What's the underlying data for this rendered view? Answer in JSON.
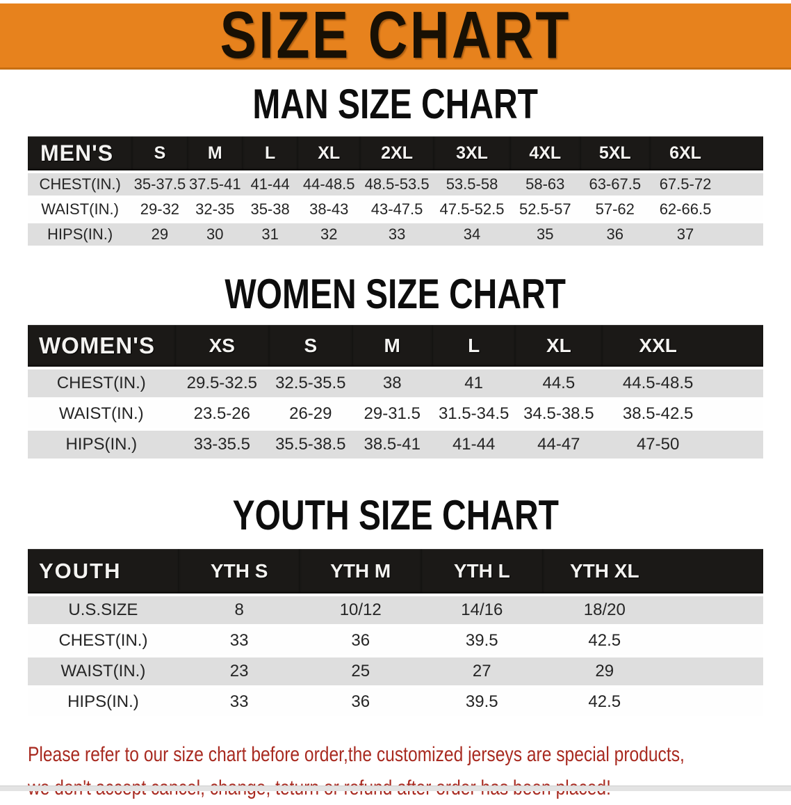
{
  "banner": {
    "title": "SIZE CHART"
  },
  "colors": {
    "banner_bg": "#E7821D",
    "table_header_bg": "#1B1917",
    "table_header_text": "#F4F3F1",
    "stripe_gray": "#DEDEDE",
    "stripe_white": "#FEFEFE",
    "heading_text": "#0D0D0D",
    "disclaimer_text": "#A82A20"
  },
  "men": {
    "heading": "MAN SIZE CHART",
    "label": "MEN'S",
    "sizes": [
      "S",
      "M",
      "L",
      "XL",
      "2XL",
      "3XL",
      "4XL",
      "5XL",
      "6XL"
    ],
    "rows": [
      {
        "label": "CHEST(IN.)",
        "values": [
          "35-37.5",
          "37.5-41",
          "41-44",
          "44-48.5",
          "48.5-53.5",
          "53.5-58",
          "58-63",
          "63-67.5",
          "67.5-72"
        ]
      },
      {
        "label": "WAIST(IN.)",
        "values": [
          "29-32",
          "32-35",
          "35-38",
          "38-43",
          "43-47.5",
          "47.5-52.5",
          "52.5-57",
          "57-62",
          "62-66.5"
        ]
      },
      {
        "label": "HIPS(IN.)",
        "values": [
          "29",
          "30",
          "31",
          "32",
          "33",
          "34",
          "35",
          "36",
          "37"
        ]
      }
    ]
  },
  "women": {
    "heading": "WOMEN SIZE CHART",
    "label": "WOMEN'S",
    "sizes": [
      "XS",
      "S",
      "M",
      "L",
      "XL",
      "XXL"
    ],
    "rows": [
      {
        "label": "CHEST(IN.)",
        "values": [
          "29.5-32.5",
          "32.5-35.5",
          "38",
          "41",
          "44.5",
          "44.5-48.5"
        ]
      },
      {
        "label": "WAIST(IN.)",
        "values": [
          "23.5-26",
          "26-29",
          "29-31.5",
          "31.5-34.5",
          "34.5-38.5",
          "38.5-42.5"
        ]
      },
      {
        "label": "HIPS(IN.)",
        "values": [
          "33-35.5",
          "35.5-38.5",
          "38.5-41",
          "41-44",
          "44-47",
          "47-50"
        ]
      }
    ]
  },
  "youth": {
    "heading": "YOUTH SIZE CHART",
    "label": "YOUTH",
    "sizes": [
      "YTH S",
      "YTH M",
      "YTH L",
      "YTH XL"
    ],
    "rows": [
      {
        "label": "U.S.SIZE",
        "values": [
          "8",
          "10/12",
          "14/16",
          "18/20"
        ]
      },
      {
        "label": "CHEST(IN.)",
        "values": [
          "33",
          "36",
          "39.5",
          "42.5"
        ]
      },
      {
        "label": "WAIST(IN.)",
        "values": [
          "23",
          "25",
          "27",
          "29"
        ]
      },
      {
        "label": "HIPS(IN.)",
        "values": [
          "33",
          "36",
          "39.5",
          "42.5"
        ]
      }
    ]
  },
  "footer": {
    "line1": "Please refer to our size chart before order,the customized jerseys are special products,",
    "line2": "we don't accept cancel, change, teturn or refund after order has been placed!"
  }
}
